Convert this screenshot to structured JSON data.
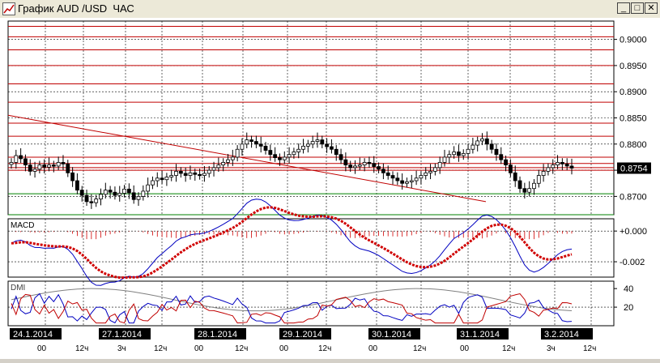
{
  "window": {
    "title": "График AUD /USD  ЧАС",
    "minimize_label": "_",
    "maximize_label": "□",
    "close_label": "✕"
  },
  "colors": {
    "resistance_line": "#c00000",
    "support_line": "#008000",
    "trend_line": "#c00000",
    "candle": "#000000",
    "macd_line": "#0000c0",
    "macd_signal": "#d00000",
    "dmi_plus": "#0000c0",
    "dmi_minus": "#c00000",
    "adx": "#808080",
    "price_badge": "#000000"
  },
  "chart_data": [
    {
      "type": "candlestick",
      "title": "",
      "ylim": [
        0.8665,
        0.9035
      ],
      "y_ticks": [
        "0.9000",
        "0.8950",
        "0.8900",
        "0.8850",
        "0.8800",
        "0.8750",
        "0.8700"
      ],
      "current_price_label": "0.8754",
      "resistance_levels": [
        0.9025,
        0.9005,
        0.898,
        0.895,
        0.8915,
        0.888,
        0.884,
        0.8815,
        0.8775,
        0.8763,
        0.8755,
        0.875
      ],
      "support_levels": [
        0.8705,
        0.8665
      ],
      "trend_line": {
        "from": 0.8855,
        "to": 0.869
      },
      "close": [
        0.8765,
        0.8778,
        0.8772,
        0.876,
        0.8748,
        0.8752,
        0.876,
        0.8756,
        0.876,
        0.8758,
        0.8765,
        0.8762,
        0.8745,
        0.873,
        0.8712,
        0.8702,
        0.869,
        0.8688,
        0.8695,
        0.8704,
        0.8712,
        0.8708,
        0.8702,
        0.8706,
        0.8714,
        0.8707,
        0.8694,
        0.87,
        0.871,
        0.8722,
        0.873,
        0.8735,
        0.8732,
        0.8737,
        0.874,
        0.8748,
        0.8744,
        0.874,
        0.8745,
        0.8742,
        0.874,
        0.8744,
        0.875,
        0.8755,
        0.876,
        0.8765,
        0.877,
        0.8775,
        0.879,
        0.88,
        0.8808,
        0.8805,
        0.88,
        0.8796,
        0.8788,
        0.878,
        0.8774,
        0.877,
        0.8775,
        0.878,
        0.8785,
        0.879,
        0.8796,
        0.88,
        0.8805,
        0.8808,
        0.88,
        0.8795,
        0.879,
        0.878,
        0.877,
        0.876,
        0.8755,
        0.8758,
        0.876,
        0.8765,
        0.8763,
        0.8757,
        0.8752,
        0.8745,
        0.874,
        0.8735,
        0.873,
        0.8725,
        0.8728,
        0.873,
        0.8735,
        0.874,
        0.8745,
        0.8748,
        0.8755,
        0.8765,
        0.8775,
        0.878,
        0.8785,
        0.8778,
        0.8782,
        0.879,
        0.8798,
        0.8806,
        0.881,
        0.88,
        0.879,
        0.878,
        0.877,
        0.876,
        0.8745,
        0.873,
        0.8715,
        0.8708,
        0.8715,
        0.8725,
        0.874,
        0.8748,
        0.8755,
        0.876,
        0.8765,
        0.8762,
        0.8758,
        0.8754
      ]
    },
    {
      "type": "line",
      "title": "MACD",
      "ylim": [
        -0.003,
        0.0008
      ],
      "y_ticks": [
        "+0.000",
        "-0.002"
      ]
    },
    {
      "type": "line",
      "title": "DMI",
      "ylim": [
        0,
        48
      ],
      "y_ticks": [
        "40",
        "20"
      ]
    }
  ],
  "time_axis": {
    "dates": [
      "24.1.2014",
      "27.1.2014",
      "28.1.2014",
      "29.1.2014",
      "30.1.2014",
      "31.1.2014",
      "3.2.2014"
    ],
    "ticks": [
      "00",
      "12ч",
      "3ч",
      "12ч",
      "00",
      "12ч",
      "00",
      "12ч",
      "00",
      "12ч",
      "00",
      "12ч",
      "3ч",
      "12ч"
    ]
  }
}
